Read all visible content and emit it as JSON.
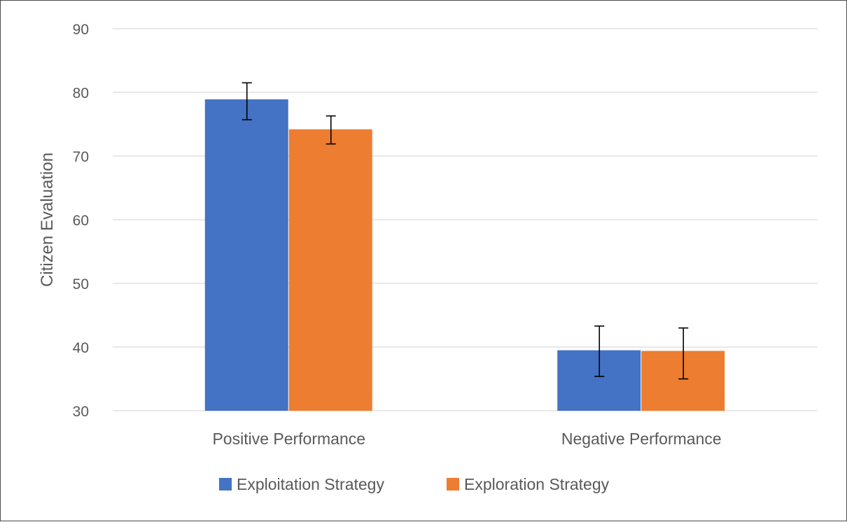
{
  "chart_data": {
    "type": "bar",
    "title": "",
    "xlabel": "",
    "ylabel": "Citizen Evaluation",
    "ylim": [
      30,
      90
    ],
    "yticks": [
      30,
      40,
      50,
      60,
      70,
      80,
      90
    ],
    "grid": true,
    "legend_position": "bottom",
    "categories": [
      "Positive Performance",
      "Negative Performance"
    ],
    "series": [
      {
        "name": "Exploitation Strategy",
        "color": "#4472C4",
        "values": [
          78.9,
          39.5
        ],
        "error_low": [
          75.7,
          35.4
        ],
        "error_high": [
          81.5,
          43.3
        ]
      },
      {
        "name": "Exploration Strategy",
        "color": "#ED7D31",
        "values": [
          74.2,
          39.4
        ],
        "error_low": [
          71.9,
          35.0
        ],
        "error_high": [
          76.3,
          43.0
        ]
      }
    ]
  }
}
